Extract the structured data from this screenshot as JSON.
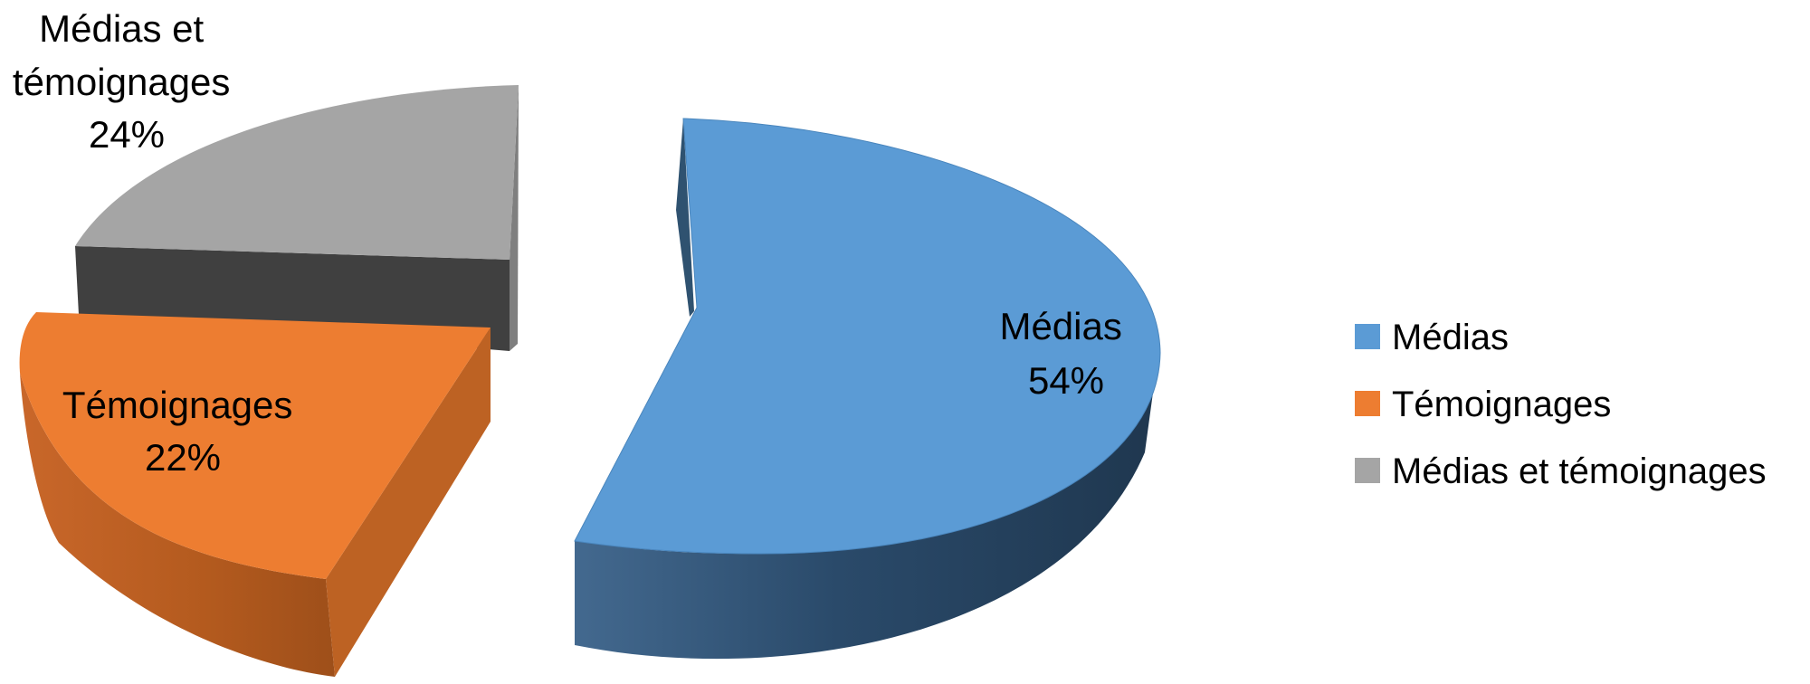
{
  "chart_data": {
    "type": "pie",
    "title": "",
    "slices": [
      {
        "label": "Médias",
        "value": 54,
        "display": "54%",
        "color": "#5B9BD5",
        "side_color": "#25415C"
      },
      {
        "label": "Témoignages",
        "value": 22,
        "display": "22%",
        "color": "#ED7D31",
        "side_color": "#B85F20"
      },
      {
        "label": "Médias et témoignages",
        "value": 24,
        "display": "24%",
        "color": "#A5A5A5",
        "side_color": "#404040"
      }
    ],
    "legend": {
      "position": "right",
      "items": [
        "Médias",
        "Témoignages",
        "Médias et témoignages"
      ]
    },
    "data_labels": [
      {
        "lines": [
          "Médias",
          "54%"
        ]
      },
      {
        "lines": [
          "Témoignages",
          "22%"
        ]
      },
      {
        "lines": [
          "Médias et",
          "témoignages",
          "24%"
        ]
      }
    ],
    "style": "3d-exploded"
  }
}
